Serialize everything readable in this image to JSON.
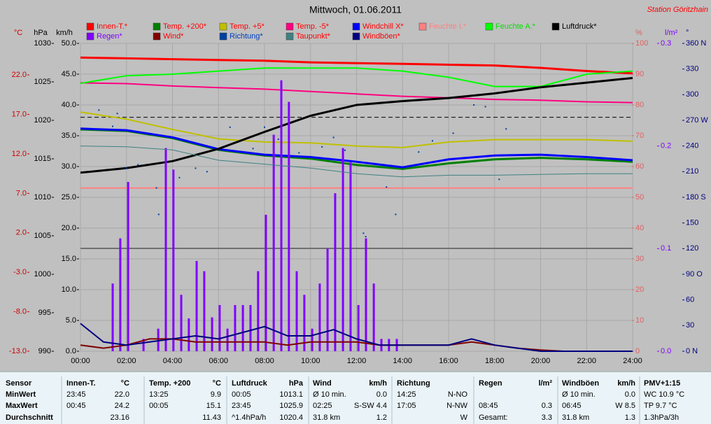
{
  "title": "Mittwoch, 01.06.2011",
  "station": "Station Göritzhain",
  "chart_data": {
    "type": "line",
    "xlim": [
      0,
      24
    ],
    "xticks": [
      {
        "value": 0,
        "label": "00:00"
      },
      {
        "value": 2,
        "label": "02:00"
      },
      {
        "value": 4,
        "label": "04:00"
      },
      {
        "value": 6,
        "label": "06:00"
      },
      {
        "value": 8,
        "label": "08:00"
      },
      {
        "value": 10,
        "label": "10:00"
      },
      {
        "value": 12,
        "label": "12:00"
      },
      {
        "value": 14,
        "label": "14:00"
      },
      {
        "value": 16,
        "label": "16:00"
      },
      {
        "value": 18,
        "label": "18:00"
      },
      {
        "value": 20,
        "label": "20:00"
      },
      {
        "value": 22,
        "label": "22:00"
      },
      {
        "value": 24,
        "label": "24:00"
      }
    ],
    "grid": true,
    "grid_axis": "kmh",
    "axes": {
      "temp": {
        "label": "°C",
        "lim": [
          -13,
          26
        ],
        "color": "#d00000",
        "ticks": [
          {
            "value": 22,
            "label": "22.0"
          },
          {
            "value": 17,
            "label": "17.0"
          },
          {
            "value": 12,
            "label": "12.0"
          },
          {
            "value": 7,
            "label": "7.0"
          },
          {
            "value": 2,
            "label": "2.0"
          },
          {
            "value": -3,
            "label": "-3.0"
          },
          {
            "value": -8,
            "label": "-8.0"
          },
          {
            "value": -13,
            "label": "-13.0"
          }
        ]
      },
      "hpa": {
        "label": "hPa",
        "lim": [
          990,
          1030
        ],
        "color": "#000000",
        "ticks": [
          1030,
          1025,
          1020,
          1015,
          1010,
          1005,
          1000,
          995,
          990
        ]
      },
      "kmh": {
        "label": "km/h",
        "lim": [
          0,
          50
        ],
        "color": "#000000",
        "ticks": [
          {
            "value": 50,
            "label": "50.0"
          },
          {
            "value": 45,
            "label": "45.0"
          },
          {
            "value": 40,
            "label": "40.0"
          },
          {
            "value": 35,
            "label": "35.0"
          },
          {
            "value": 30,
            "label": "30.0"
          },
          {
            "value": 25,
            "label": "25.0"
          },
          {
            "value": 20,
            "label": "20.0"
          },
          {
            "value": 15,
            "label": "15.0"
          },
          {
            "value": 10,
            "label": "10.0"
          },
          {
            "value": 5,
            "label": "5.0"
          },
          {
            "value": 0,
            "label": "0.0"
          }
        ]
      },
      "pct": {
        "label": "%",
        "lim": [
          0,
          100
        ],
        "color": "#e06060",
        "ticks": [
          100,
          90,
          80,
          70,
          60,
          50,
          40,
          30,
          20,
          10,
          0
        ]
      },
      "rain": {
        "label": "l/m²",
        "lim": [
          0,
          0.3
        ],
        "color": "#8000ff",
        "ticks": [
          0.3,
          0.2,
          0.1,
          {
            "value": 0,
            "label": "0.0"
          }
        ]
      },
      "deg": {
        "label": "°",
        "lim": [
          0,
          360
        ],
        "color": "#000080",
        "ticks": [
          {
            "value": 360,
            "label": "360 N"
          },
          330,
          300,
          {
            "value": 270,
            "label": "270 W"
          },
          240,
          210,
          {
            "value": 180,
            "label": "180 S"
          },
          150,
          120,
          {
            "value": 90,
            "label": "90 O"
          },
          60,
          30,
          {
            "value": 0,
            "label": "0 N"
          }
        ]
      }
    },
    "series": [
      {
        "name": "Innen-T.*",
        "type": "line",
        "axis": "temp",
        "color": "#ff0000",
        "label_color": "#ff0000",
        "line_width": 3,
        "x": [
          0,
          2,
          4,
          6,
          8,
          10,
          12,
          14,
          16,
          18,
          20,
          22,
          24
        ],
        "values": [
          24.2,
          24.1,
          24.0,
          23.9,
          23.8,
          23.6,
          23.5,
          23.4,
          23.3,
          23.2,
          22.9,
          22.5,
          22.2
        ]
      },
      {
        "name": "Temp. +200*",
        "type": "line",
        "axis": "temp",
        "color": "#008000",
        "label_color": "#ff0000",
        "line_width": 3,
        "x": [
          0,
          2,
          4,
          6,
          8,
          10,
          12,
          14,
          16,
          18,
          20,
          22,
          24
        ],
        "values": [
          15.1,
          14.9,
          14.0,
          12.5,
          11.8,
          11.4,
          10.6,
          10.1,
          10.8,
          11.3,
          11.5,
          11.3,
          11.0
        ]
      },
      {
        "name": "Temp. +5*",
        "type": "line",
        "axis": "temp",
        "color": "#c0c000",
        "label_color": "#ff0000",
        "line_width": 2,
        "x": [
          0,
          2,
          4,
          6,
          8,
          10,
          12,
          14,
          16,
          18,
          20,
          22,
          24
        ],
        "values": [
          17.3,
          16.4,
          15.1,
          13.9,
          13.5,
          13.4,
          13.0,
          12.8,
          13.5,
          13.8,
          13.8,
          13.8,
          13.6
        ]
      },
      {
        "name": "Temp. -5*",
        "type": "line",
        "axis": "temp",
        "color": "#ff0080",
        "label_color": "#ff0000",
        "line_width": 2,
        "x": [
          0,
          2,
          4,
          6,
          8,
          10,
          12,
          14,
          16,
          18,
          20,
          22,
          24
        ],
        "values": [
          21.0,
          20.9,
          20.6,
          20.4,
          20.2,
          19.9,
          19.6,
          19.3,
          19.1,
          18.9,
          18.8,
          18.6,
          18.5
        ]
      },
      {
        "name": "Windchill X*",
        "type": "line",
        "axis": "temp",
        "color": "#0000ff",
        "label_color": "#ff0000",
        "line_width": 3,
        "x": [
          0,
          2,
          4,
          6,
          8,
          10,
          12,
          14,
          16,
          18,
          20,
          22,
          24
        ],
        "values": [
          15.2,
          15.0,
          14.1,
          12.6,
          11.9,
          11.6,
          11.0,
          10.3,
          11.3,
          11.8,
          11.9,
          11.6,
          11.2
        ]
      },
      {
        "name": "Feuchte I.*",
        "type": "line",
        "axis": "pct",
        "color": "#ff8080",
        "label_color": "#ff8080",
        "line_width": 2,
        "x": [
          0,
          24
        ],
        "values": [
          53,
          53
        ]
      },
      {
        "name": "Feuchte A.*",
        "type": "line",
        "axis": "pct",
        "color": "#00ff00",
        "label_color": "#00e000",
        "line_width": 2,
        "x": [
          0,
          2,
          4,
          6,
          8,
          10,
          12,
          14,
          16,
          18,
          20,
          22,
          24
        ],
        "values": [
          87,
          89.5,
          90,
          91,
          92,
          92,
          92,
          91,
          89,
          86,
          86,
          90,
          91
        ]
      },
      {
        "name": "Luftdruck*",
        "type": "line",
        "axis": "hpa",
        "color": "#000000",
        "label_color": "#000000",
        "line_width": 3,
        "x": [
          0,
          2,
          4,
          6,
          8,
          10,
          12,
          14,
          16,
          18,
          20,
          22,
          24
        ],
        "values": [
          1013.2,
          1013.8,
          1014.7,
          1016.3,
          1018.5,
          1020.6,
          1022.0,
          1022.5,
          1022.9,
          1023.5,
          1024.3,
          1024.9,
          1025.5
        ]
      },
      {
        "name": "Regen*",
        "type": "bar",
        "axis": "rain",
        "color": "#8000ff",
        "label_color": "#8000ff",
        "x": [
          1.4,
          1.73,
          2.07,
          2.74,
          3.38,
          3.71,
          4.04,
          4.38,
          4.71,
          5.05,
          5.38,
          5.72,
          6.05,
          6.39,
          6.72,
          7.06,
          7.39,
          7.72,
          8.06,
          8.4,
          8.73,
          9.06,
          9.4,
          9.73,
          10.07,
          10.4,
          10.74,
          11.07,
          11.41,
          11.74,
          12.08,
          12.41,
          12.75,
          13.08,
          13.41,
          13.75
        ],
        "values": [
          0.066,
          0.11,
          0.165,
          0.012,
          0.022,
          0.198,
          0.177,
          0.055,
          0.032,
          0.088,
          0.078,
          0.033,
          0.045,
          0.022,
          0.045,
          0.045,
          0.045,
          0.078,
          0.133,
          0.211,
          0.264,
          0.243,
          0.078,
          0.055,
          0.022,
          0.066,
          0.1,
          0.154,
          0.198,
          0.184,
          0.045,
          0.11,
          0.066,
          0.012,
          0.012,
          0.012
        ]
      },
      {
        "name": "Wind*",
        "type": "line",
        "axis": "kmh",
        "color": "#800000",
        "label_color": "#ff0000",
        "line_width": 2,
        "x": [
          0,
          1,
          2,
          3,
          4,
          5,
          6,
          7,
          8,
          9,
          10,
          11,
          12,
          13,
          14,
          15,
          16,
          17,
          18,
          19,
          20,
          21,
          22,
          23,
          24
        ],
        "values": [
          1.0,
          0.5,
          1.0,
          2.0,
          2.0,
          1.5,
          1.5,
          1.5,
          1.5,
          1.0,
          1.5,
          1.5,
          1.5,
          1.0,
          1.0,
          1.0,
          1.0,
          1.5,
          1.0,
          0.5,
          0.2,
          0,
          0,
          0,
          0
        ]
      },
      {
        "name": "Richtung*",
        "type": "scatter",
        "axis": "deg",
        "color": "#0040a0",
        "label_color": "#0040c0",
        "x": [
          0.8,
          1.4,
          1.6,
          2.0,
          2.5,
          3.3,
          3.4,
          4.3,
          5.0,
          5.5,
          6.5,
          7.5,
          8.0,
          8.6,
          9.5,
          10.5,
          11.0,
          11.5,
          12.3,
          12.4,
          13.3,
          13.7,
          14.7,
          15.3,
          16.2,
          17.1,
          17.6,
          18.2,
          18.5
        ],
        "values": [
          282,
          263,
          278,
          214,
          218,
          191,
          160,
          203,
          214,
          210,
          262,
          237,
          262,
          248,
          232,
          239,
          250,
          235,
          138,
          134,
          192,
          160,
          233,
          246,
          255,
          288,
          286,
          201,
          260
        ]
      },
      {
        "name": "Taupunkt*",
        "type": "line",
        "axis": "temp",
        "color": "#408080",
        "label_color": "#ff0000",
        "line_width": 1,
        "x": [
          0,
          2,
          4,
          6,
          8,
          10,
          12,
          14,
          16,
          18,
          20,
          22,
          24
        ],
        "values": [
          13.0,
          12.9,
          12.5,
          11.2,
          10.7,
          10.2,
          9.5,
          9.1,
          9.3,
          9.3,
          9.4,
          9.5,
          9.5
        ]
      },
      {
        "name": "Windböen*",
        "type": "line",
        "axis": "kmh",
        "color": "#000080",
        "label_color": "#ff0000",
        "line_width": 2,
        "x": [
          0,
          1,
          2,
          3,
          4,
          5,
          6,
          7,
          8,
          9,
          10,
          11,
          12,
          13,
          14,
          15,
          16,
          17,
          18,
          19,
          20,
          21,
          22,
          23,
          24
        ],
        "values": [
          4.5,
          1.5,
          1.0,
          1.5,
          2.0,
          2.5,
          2.0,
          3.0,
          4.0,
          2.5,
          2.5,
          3.5,
          2.0,
          1.0,
          1.0,
          1.0,
          1.0,
          2.0,
          1.0,
          0.5,
          0,
          0,
          0,
          0,
          0
        ]
      }
    ]
  },
  "table": {
    "row_labels": [
      "Sensor",
      "MinWert",
      "MaxWert",
      "Durchschnitt"
    ],
    "columns": [
      {
        "title": "Innen-T.",
        "unit": "°C",
        "rows": [
          {
            "time": "23:45",
            "value": "22.0"
          },
          {
            "time": "00:45",
            "value": "24.2"
          },
          {
            "value": "23.16"
          }
        ]
      },
      {
        "title": "Temp. +200",
        "unit": "°C",
        "rows": [
          {
            "time": "13:25",
            "value": "9.9"
          },
          {
            "time": "00:05",
            "value": "15.1"
          },
          {
            "value": "11.43"
          }
        ]
      },
      {
        "title": "Luftdruck",
        "unit": "hPa",
        "rows": [
          {
            "time": "00:05",
            "value": "1013.1"
          },
          {
            "time": "23:45",
            "value": "1025.9"
          },
          {
            "time": "^1.4hPa/h",
            "value": "1020.4"
          }
        ]
      },
      {
        "title": "Wind",
        "unit": "km/h",
        "rows": [
          {
            "time": "Ø 10 min.",
            "value": "0.0"
          },
          {
            "time": "02:25",
            "value": "S-SW 4.4"
          },
          {
            "time": "31.8 km",
            "value": "1.2"
          }
        ]
      },
      {
        "title": "Richtung",
        "rows": [
          {
            "time": "14:25",
            "value": "N-NO"
          },
          {
            "time": "17:05",
            "value": "N-NW"
          },
          {
            "value": "W"
          }
        ]
      },
      {
        "title": "Regen",
        "unit": "l/m²",
        "rows": [
          null,
          {
            "time": "08:45",
            "value": "0.3"
          },
          {
            "time": "Gesamt:",
            "value": "3.3"
          }
        ]
      },
      {
        "title": "Windböen",
        "unit": "km/h",
        "rows": [
          {
            "time": "Ø 10 min.",
            "value": "0.0"
          },
          {
            "time": "06:45",
            "value": "W 8.5"
          },
          {
            "time": "31.8 km",
            "value": "1.3"
          }
        ]
      },
      {
        "title": "PMV+1:15",
        "rows": [
          {
            "time": "WC 10.9 °C"
          },
          {
            "time": "TP 9.7 °C"
          },
          {
            "time": "1.3hPa/3h"
          }
        ]
      }
    ]
  }
}
